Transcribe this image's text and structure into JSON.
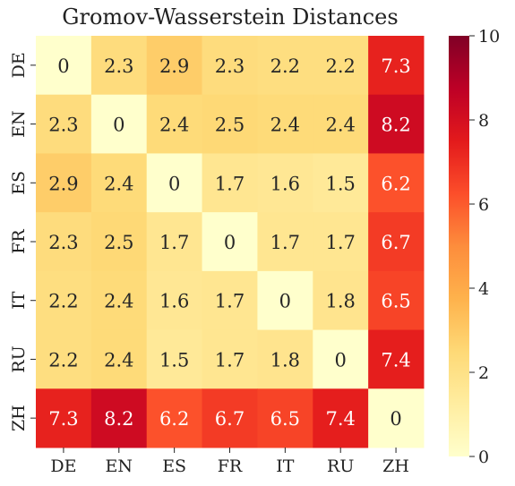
{
  "chart_data": {
    "type": "heatmap",
    "title": "Gromov-Wasserstein Distances",
    "xlabel": "",
    "ylabel": "",
    "x_categories": [
      "DE",
      "EN",
      "ES",
      "FR",
      "IT",
      "RU",
      "ZH"
    ],
    "y_categories": [
      "DE",
      "EN",
      "ES",
      "FR",
      "IT",
      "RU",
      "ZH"
    ],
    "values": [
      [
        0,
        2.3,
        2.9,
        2.3,
        2.2,
        2.2,
        7.3
      ],
      [
        2.3,
        0,
        2.4,
        2.5,
        2.4,
        2.4,
        8.2
      ],
      [
        2.9,
        2.4,
        0,
        1.7,
        1.6,
        1.5,
        6.2
      ],
      [
        2.3,
        2.5,
        1.7,
        0,
        1.7,
        1.7,
        6.7
      ],
      [
        2.2,
        2.4,
        1.6,
        1.7,
        0,
        1.8,
        6.5
      ],
      [
        2.2,
        2.4,
        1.5,
        1.7,
        1.8,
        0,
        7.4
      ],
      [
        7.3,
        8.2,
        6.2,
        6.7,
        6.5,
        7.4,
        0
      ]
    ],
    "value_labels": [
      [
        "0",
        "2.3",
        "2.9",
        "2.3",
        "2.2",
        "2.2",
        "7.3"
      ],
      [
        "2.3",
        "0",
        "2.4",
        "2.5",
        "2.4",
        "2.4",
        "8.2"
      ],
      [
        "2.9",
        "2.4",
        "0",
        "1.7",
        "1.6",
        "1.5",
        "6.2"
      ],
      [
        "2.3",
        "2.5",
        "1.7",
        "0",
        "1.7",
        "1.7",
        "6.7"
      ],
      [
        "2.2",
        "2.4",
        "1.6",
        "1.7",
        "0",
        "1.8",
        "6.5"
      ],
      [
        "2.2",
        "2.4",
        "1.5",
        "1.7",
        "1.8",
        "0",
        "7.4"
      ],
      [
        "7.3",
        "8.2",
        "6.2",
        "6.7",
        "6.5",
        "7.4",
        "0"
      ]
    ],
    "colormap": "YlOrRd",
    "color_range": [
      0,
      10
    ],
    "colorbar_ticks": [
      0,
      2,
      4,
      6,
      8,
      10
    ],
    "colorbar_tick_labels": [
      "0",
      "2",
      "4",
      "6",
      "8",
      "10"
    ],
    "annotated": true,
    "grid": false,
    "legend": "colorbar-right"
  }
}
